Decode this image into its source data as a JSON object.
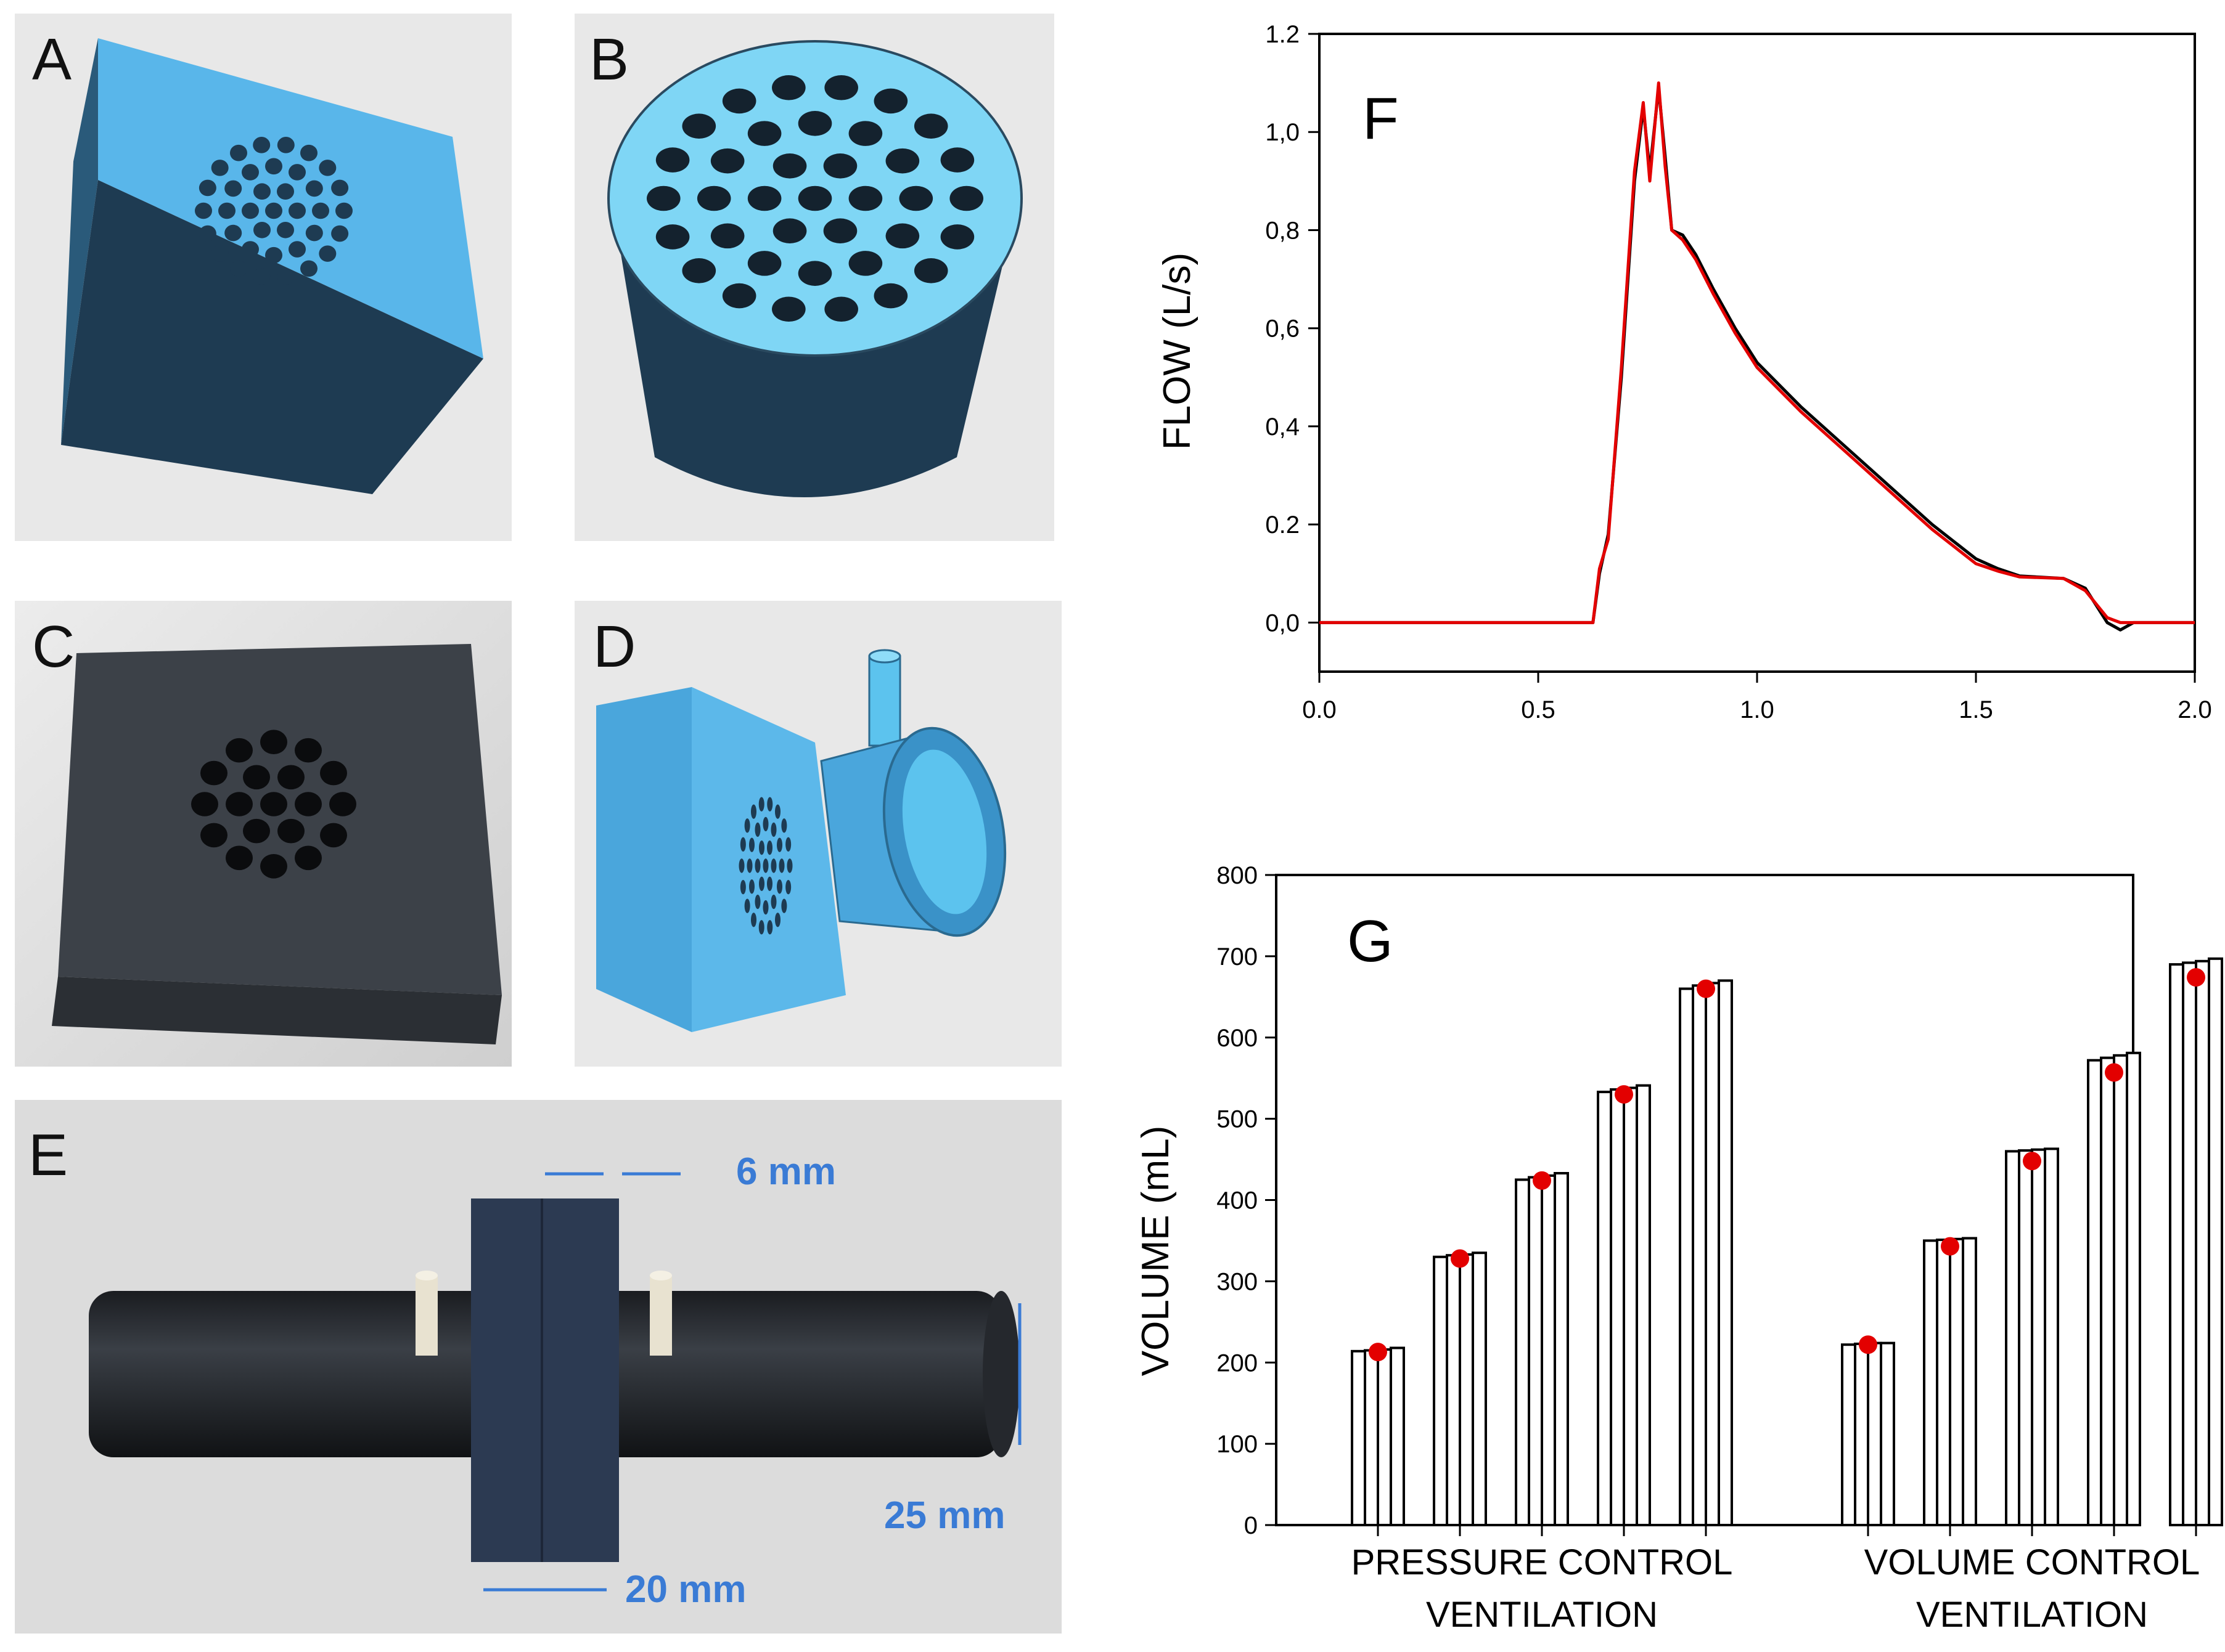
{
  "panels": {
    "A": {
      "letter": "A"
    },
    "B": {
      "letter": "B"
    },
    "C": {
      "letter": "C"
    },
    "D": {
      "letter": "D"
    },
    "E": {
      "letter": "E",
      "dims": {
        "width": "6 mm",
        "diameter": "25 mm",
        "length": "20 mm"
      }
    },
    "F": {
      "letter": "F"
    },
    "G": {
      "letter": "G"
    }
  },
  "colors": {
    "part_blue": "#4aa6dc",
    "part_blue_dark": "#1d3c53",
    "dim_blue": "#3a7bd5",
    "red": "#e30000",
    "black": "#000000"
  },
  "chart_data": [
    {
      "type": "line",
      "panel": "F",
      "ylabel": "FLOW (L/s)",
      "xlabel": "",
      "xlim": [
        0.0,
        2.0
      ],
      "ylim": [
        -0.1,
        1.2
      ],
      "xticks": [
        "0.0",
        "0.5",
        "1.0",
        "1.5",
        "2.0"
      ],
      "yticks": [
        "0,0",
        "0.2",
        "0,4",
        "0,6",
        "0,8",
        "1,0",
        "1.2"
      ],
      "ytick_values": [
        0.0,
        0.2,
        0.4,
        0.6,
        0.8,
        1.0,
        1.2
      ],
      "xtick_values": [
        0.0,
        0.5,
        1.0,
        1.5,
        2.0
      ],
      "series": [
        {
          "color": "#000000",
          "points": [
            [
              0.0,
              0.0
            ],
            [
              0.5,
              0.0
            ],
            [
              0.6,
              0.0
            ],
            [
              0.625,
              0.0
            ],
            [
              0.64,
              0.1
            ],
            [
              0.66,
              0.18
            ],
            [
              0.69,
              0.5
            ],
            [
              0.72,
              0.9
            ],
            [
              0.74,
              1.05
            ],
            [
              0.755,
              0.92
            ],
            [
              0.775,
              1.09
            ],
            [
              0.79,
              0.95
            ],
            [
              0.805,
              0.8
            ],
            [
              0.83,
              0.79
            ],
            [
              0.86,
              0.75
            ],
            [
              0.9,
              0.68
            ],
            [
              0.95,
              0.6
            ],
            [
              1.0,
              0.53
            ],
            [
              1.1,
              0.44
            ],
            [
              1.2,
              0.36
            ],
            [
              1.3,
              0.28
            ],
            [
              1.4,
              0.2
            ],
            [
              1.5,
              0.13
            ],
            [
              1.55,
              0.11
            ],
            [
              1.6,
              0.095
            ],
            [
              1.7,
              0.09
            ],
            [
              1.75,
              0.07
            ],
            [
              1.8,
              0.0
            ],
            [
              1.83,
              -0.015
            ],
            [
              1.86,
              0.0
            ],
            [
              2.0,
              0.0
            ]
          ]
        },
        {
          "color": "#e30000",
          "points": [
            [
              0.0,
              0.0
            ],
            [
              0.5,
              0.0
            ],
            [
              0.6,
              0.0
            ],
            [
              0.625,
              0.0
            ],
            [
              0.64,
              0.11
            ],
            [
              0.66,
              0.17
            ],
            [
              0.69,
              0.52
            ],
            [
              0.72,
              0.92
            ],
            [
              0.74,
              1.06
            ],
            [
              0.755,
              0.9
            ],
            [
              0.775,
              1.1
            ],
            [
              0.79,
              0.93
            ],
            [
              0.805,
              0.8
            ],
            [
              0.83,
              0.78
            ],
            [
              0.86,
              0.74
            ],
            [
              0.9,
              0.67
            ],
            [
              0.95,
              0.59
            ],
            [
              1.0,
              0.52
            ],
            [
              1.1,
              0.43
            ],
            [
              1.2,
              0.35
            ],
            [
              1.3,
              0.27
            ],
            [
              1.4,
              0.19
            ],
            [
              1.5,
              0.12
            ],
            [
              1.55,
              0.105
            ],
            [
              1.6,
              0.093
            ],
            [
              1.7,
              0.09
            ],
            [
              1.75,
              0.065
            ],
            [
              1.8,
              0.01
            ],
            [
              1.83,
              0.0
            ],
            [
              2.0,
              0.0
            ]
          ]
        }
      ]
    },
    {
      "type": "bar",
      "panel": "G",
      "ylabel": "VOLUME (mL)",
      "ylim": [
        0,
        800
      ],
      "yticks": [
        "0",
        "100",
        "200",
        "300",
        "400",
        "500",
        "600",
        "700",
        "800"
      ],
      "ytick_values": [
        0,
        100,
        200,
        300,
        400,
        500,
        600,
        700,
        800
      ],
      "category_label_lines": [
        [
          "PRESSURE CONTROL",
          "VENTILATION"
        ],
        [
          "VOLUME CONTROL",
          "VENTILATION"
        ]
      ],
      "groups": [
        {
          "section": 0,
          "bars": [
            214,
            215,
            216,
            218
          ],
          "marker": 213
        },
        {
          "section": 0,
          "bars": [
            330,
            332,
            333,
            335
          ],
          "marker": 328
        },
        {
          "section": 0,
          "bars": [
            425,
            428,
            430,
            433
          ],
          "marker": 424
        },
        {
          "section": 0,
          "bars": [
            533,
            536,
            538,
            541
          ],
          "marker": 530
        },
        {
          "section": 0,
          "bars": [
            660,
            664,
            667,
            670
          ],
          "marker": 660
        },
        {
          "section": 1,
          "bars": [
            222,
            223,
            224,
            224
          ],
          "marker": 222
        },
        {
          "section": 1,
          "bars": [
            350,
            351,
            352,
            353
          ],
          "marker": 343
        },
        {
          "section": 1,
          "bars": [
            460,
            461,
            462,
            463
          ],
          "marker": 448
        },
        {
          "section": 1,
          "bars": [
            572,
            575,
            578,
            581
          ],
          "marker": 557
        },
        {
          "section": 1,
          "bars": [
            690,
            692,
            694,
            697
          ],
          "marker": 674
        }
      ]
    }
  ]
}
